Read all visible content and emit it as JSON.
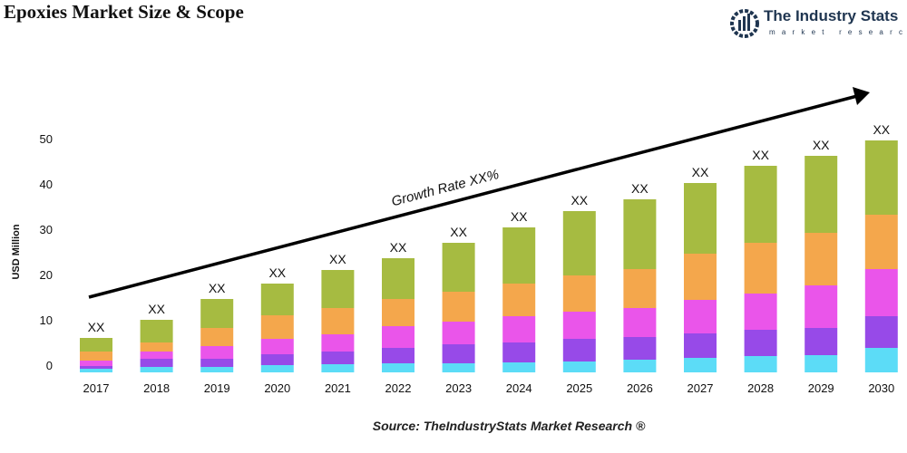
{
  "title": "Epoxies Market Size & Scope",
  "logo": {
    "name": "The Industry Stats",
    "tagline": "market research"
  },
  "source": "Source: TheIndustryStats Market Research ®",
  "chart_data": {
    "type": "bar",
    "stacked": true,
    "ylabel": "USD Million",
    "xlabel": "",
    "ylim": [
      -1.6,
      50
    ],
    "yticks": [
      0,
      10,
      20,
      30,
      40,
      50
    ],
    "grid": false,
    "categories": [
      "2017",
      "2018",
      "2019",
      "2020",
      "2021",
      "2022",
      "2023",
      "2024",
      "2025",
      "2026",
      "2027",
      "2028",
      "2029",
      "2030"
    ],
    "data_labels": [
      "XX",
      "XX",
      "XX",
      "XX",
      "XX",
      "XX",
      "XX",
      "XX",
      "XX",
      "XX",
      "XX",
      "XX",
      "XX",
      "XX"
    ],
    "annotation": "Growth Rate XX%",
    "series": [
      {
        "color": "#5cdcf7",
        "values": [
          0.8,
          1.2,
          1.2,
          1.6,
          1.8,
          2,
          2,
          2.2,
          2.4,
          2.8,
          3.2,
          3.6,
          3.8,
          5.4
        ]
      },
      {
        "color": "#974ae8",
        "values": [
          0.6,
          1.8,
          1.8,
          2.4,
          2.8,
          3.4,
          4.2,
          4.4,
          5,
          5,
          5.4,
          5.8,
          6,
          7
        ]
      },
      {
        "color": "#ea55ea",
        "values": [
          1.2,
          1.6,
          2.8,
          3.4,
          3.8,
          4.8,
          5,
          5.8,
          6,
          6.4,
          7.4,
          8,
          9.4,
          10.4
        ]
      },
      {
        "color": "#f4a74c",
        "values": [
          2,
          2,
          4,
          5.2,
          5.8,
          6,
          6.6,
          7.2,
          8,
          8.6,
          10.2,
          11.2,
          11.6,
          12
        ]
      },
      {
        "color": "#a6bb41",
        "values": [
          3,
          5,
          6.4,
          7,
          8.4,
          9,
          10.8,
          12.4,
          14.2,
          15.4,
          15.6,
          17,
          17,
          16.4
        ]
      }
    ]
  }
}
